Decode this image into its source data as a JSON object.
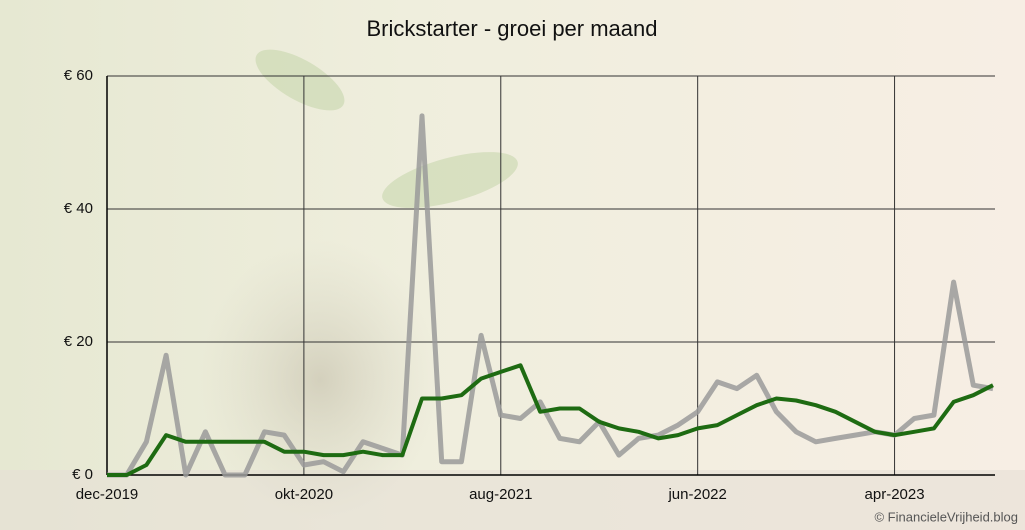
{
  "chart_data": {
    "type": "line",
    "title": "Brickstarter - groei per maand",
    "credit": "© FinancieleVrijheid.blog",
    "categories": [
      "dec-2019",
      null,
      null,
      null,
      null,
      null,
      null,
      null,
      null,
      null,
      "okt-2020",
      null,
      null,
      null,
      null,
      null,
      null,
      null,
      null,
      null,
      "aug-2021",
      null,
      null,
      null,
      null,
      null,
      null,
      null,
      null,
      null,
      "jun-2022",
      null,
      null,
      null,
      null,
      null,
      null,
      null,
      null,
      null,
      "apr-2023",
      null,
      null,
      null,
      null,
      null
    ],
    "series": [
      {
        "color": "#9a9a9a",
        "values": [
          0,
          0,
          5,
          18,
          0,
          6.5,
          0,
          0,
          6.5,
          6,
          1.5,
          2,
          0.5,
          5,
          4,
          3,
          54,
          2,
          2,
          21,
          9,
          8.5,
          11,
          5.5,
          5,
          8,
          3,
          5.5,
          6,
          7.5,
          9.5,
          14,
          13,
          15,
          9.5,
          6.5,
          5,
          5.5,
          6,
          6.5,
          6,
          8.5,
          9,
          29,
          13.5,
          13
        ]
      },
      {
        "color": "#1e6b12",
        "values": [
          0,
          0,
          1.5,
          6,
          5,
          5,
          5,
          5,
          5,
          3.5,
          3.5,
          3,
          3,
          3.5,
          3,
          3,
          11.5,
          11.5,
          12,
          14.5,
          15.5,
          16.5,
          9.5,
          10,
          10,
          8,
          7,
          6.5,
          5.5,
          6,
          7,
          7.5,
          9,
          10.5,
          11.5,
          11.2,
          10.5,
          9.5,
          8,
          6.5,
          6,
          6.5,
          7,
          11,
          12,
          13.5
        ]
      }
    ],
    "ylim": [
      0,
      60
    ],
    "yticks": [
      {
        "value": 0,
        "label": "€ 0"
      },
      {
        "value": 20,
        "label": "€ 20"
      },
      {
        "value": 40,
        "label": "€ 40"
      },
      {
        "value": 60,
        "label": "€ 60"
      }
    ],
    "grid": true
  }
}
